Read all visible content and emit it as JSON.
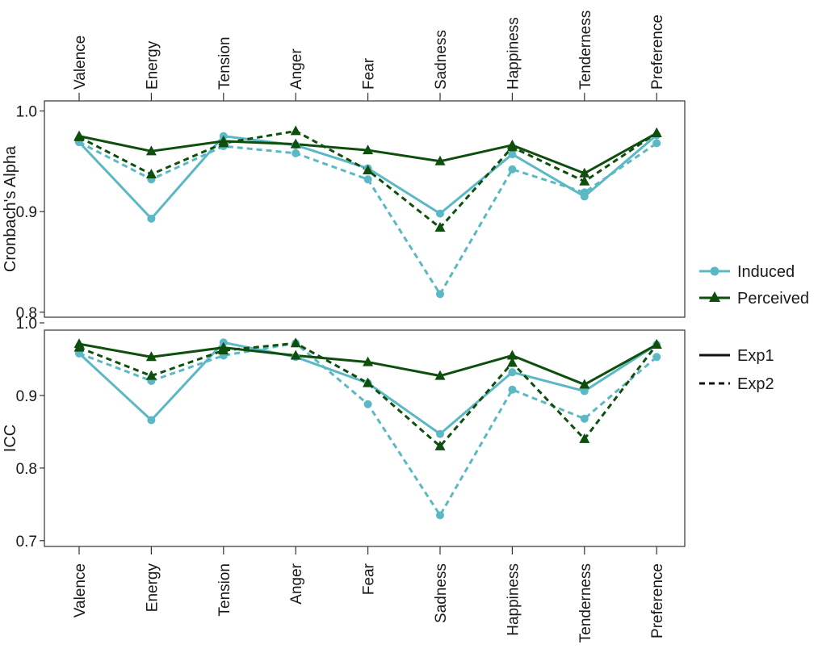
{
  "chart_data": {
    "type": "line",
    "categories": [
      "Valence",
      "Energy",
      "Tension",
      "Anger",
      "Fear",
      "Sadness",
      "Happiness",
      "Tenderness",
      "Preference"
    ],
    "colors": {
      "induced": "#5bb8c4",
      "perceived": "#0e4f0e",
      "frame": "#333333",
      "axis": "#333333"
    },
    "legend": {
      "color_entries": [
        {
          "name": "Induced",
          "color": "#5bb8c4",
          "marker": "circle"
        },
        {
          "name": "Perceived",
          "color": "#0e4f0e",
          "marker": "triangle"
        }
      ],
      "linetype_entries": [
        {
          "name": "Exp1",
          "dash": "solid"
        },
        {
          "name": "Exp2",
          "dash": "dashed"
        }
      ]
    },
    "panels": [
      {
        "ylabel": "Cronbach's Alpha",
        "ylim": [
          0.795,
          1.01
        ],
        "yticks": [
          0.8,
          0.9,
          1.0
        ],
        "ytick_labels": [
          "0.8",
          "0.9",
          "1.0"
        ],
        "series": [
          {
            "name": "Induced",
            "exp": "Exp1",
            "values": [
              0.969,
              0.893,
              0.975,
              0.966,
              0.943,
              0.898,
              0.957,
              0.915,
              0.976
            ]
          },
          {
            "name": "Induced",
            "exp": "Exp2",
            "values": [
              0.969,
              0.932,
              0.965,
              0.958,
              0.932,
              0.818,
              0.942,
              0.919,
              0.968
            ]
          },
          {
            "name": "Perceived",
            "exp": "Exp1",
            "values": [
              0.975,
              0.96,
              0.97,
              0.967,
              0.961,
              0.95,
              0.966,
              0.938,
              0.978
            ]
          },
          {
            "name": "Perceived",
            "exp": "Exp2",
            "values": [
              0.974,
              0.937,
              0.968,
              0.98,
              0.941,
              0.884,
              0.964,
              0.93,
              0.978
            ]
          }
        ]
      },
      {
        "ylabel": "ICC",
        "ylim": [
          0.692,
          0.99
        ],
        "yticks": [
          0.7,
          0.8,
          0.9,
          1.0
        ],
        "ytick_labels": [
          "0.7",
          "0.8",
          "0.9",
          "1.0"
        ],
        "series": [
          {
            "name": "Induced",
            "exp": "Exp1",
            "values": [
              0.958,
              0.866,
              0.973,
              0.953,
              0.917,
              0.847,
              0.932,
              0.906,
              0.97
            ]
          },
          {
            "name": "Induced",
            "exp": "Exp2",
            "values": [
              0.958,
              0.92,
              0.955,
              0.972,
              0.888,
              0.735,
              0.908,
              0.868,
              0.953
            ]
          },
          {
            "name": "Perceived",
            "exp": "Exp1",
            "values": [
              0.971,
              0.953,
              0.966,
              0.955,
              0.946,
              0.927,
              0.955,
              0.915,
              0.97
            ]
          },
          {
            "name": "Perceived",
            "exp": "Exp2",
            "values": [
              0.966,
              0.927,
              0.962,
              0.972,
              0.917,
              0.83,
              0.945,
              0.84,
              0.97
            ]
          }
        ]
      }
    ]
  }
}
